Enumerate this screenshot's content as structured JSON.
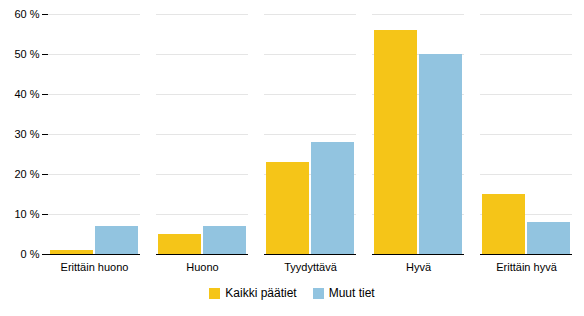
{
  "chart_data": {
    "type": "bar",
    "categories": [
      "Erittäin huono",
      "Huono",
      "Tyydyttävä",
      "Hyvä",
      "Erittäin hyvä"
    ],
    "series": [
      {
        "name": "Kaikki päätiet",
        "color": "#F5C518",
        "values": [
          1,
          5,
          23,
          56,
          15
        ]
      },
      {
        "name": "Muut tiet",
        "color": "#92C4E0",
        "values": [
          7,
          7,
          28,
          50,
          8
        ]
      }
    ],
    "ylim": [
      0,
      60
    ],
    "yticks": [
      {
        "value": 0,
        "label": "0 %"
      },
      {
        "value": 10,
        "label": "10 %"
      },
      {
        "value": 20,
        "label": "20 %"
      },
      {
        "value": 30,
        "label": "30 %"
      },
      {
        "value": 40,
        "label": "40 %"
      },
      {
        "value": 50,
        "label": "50 %"
      },
      {
        "value": 60,
        "label": "60 %"
      }
    ],
    "grid": true,
    "legend": "bottom"
  }
}
